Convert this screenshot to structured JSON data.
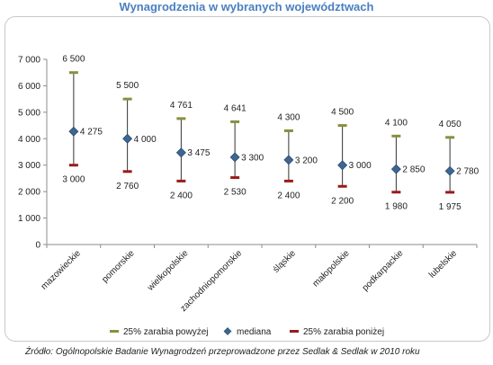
{
  "chart_data": {
    "type": "high-low",
    "title": "Wynagrodzenia w wybranych województwach",
    "categories": [
      "mazowieckie",
      "pomorskie",
      "wielkopolskie",
      "zachodniopomorskie",
      "śląskie",
      "małopolskie",
      "podkarpackie",
      "lubelskie"
    ],
    "series": [
      {
        "name": "25% zarabia powyżej",
        "values": [
          6500,
          5500,
          4761,
          4641,
          4300,
          4500,
          4100,
          4050
        ],
        "labels": [
          "6 500",
          "5 500",
          "4 761",
          "4 641",
          "4 300",
          "4 500",
          "4 100",
          "4 050"
        ],
        "color": "#8a8f3e"
      },
      {
        "name": "mediana",
        "values": [
          4275,
          4000,
          3475,
          3300,
          3200,
          3000,
          2850,
          2780
        ],
        "labels": [
          "4 275",
          "4 000",
          "3 475",
          "3 300",
          "3 200",
          "3 000",
          "2 850",
          "2 780"
        ],
        "color": "#3d6690"
      },
      {
        "name": "25% zarabia poniżej",
        "values": [
          3000,
          2760,
          2400,
          2530,
          2400,
          2200,
          1980,
          1975
        ],
        "labels": [
          "3 000",
          "2 760",
          "2 400",
          "2 530",
          "2 400",
          "2 200",
          "1 980",
          "1 975"
        ],
        "color": "#9a1b1b"
      }
    ],
    "ylim": [
      0,
      7000
    ],
    "yticks": [
      0,
      1000,
      2000,
      3000,
      4000,
      5000,
      6000,
      7000
    ],
    "ytick_labels": [
      "0",
      "1 000",
      "2 000",
      "3 000",
      "4 000",
      "5 000",
      "6 000",
      "7 000"
    ],
    "xlabel": "",
    "ylabel": "",
    "grid": false,
    "legend_position": "bottom"
  },
  "source": "Źródło: Ogólnopolskie Badanie Wynagrodzeń przeprowadzone przez Sedlak & Sedlak w 2010 roku"
}
